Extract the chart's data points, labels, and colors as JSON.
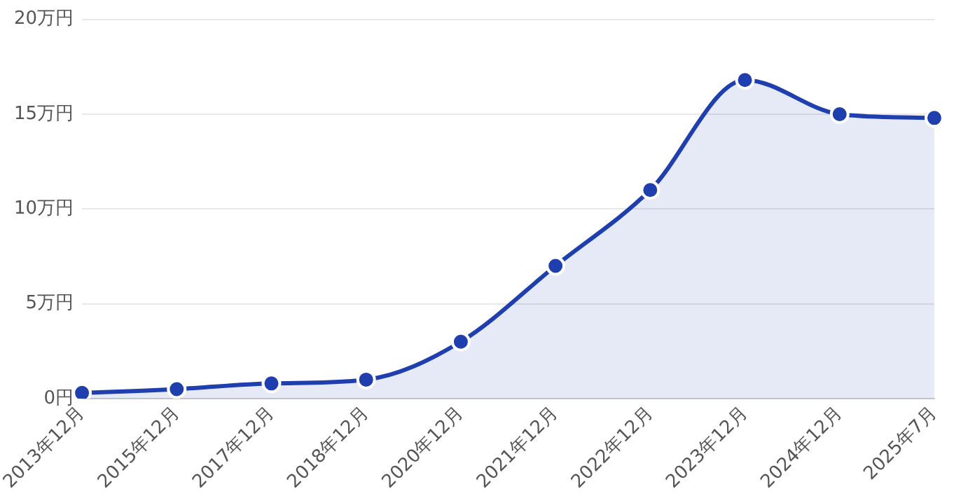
{
  "chart_data": {
    "type": "area",
    "categories": [
      "2013年12月",
      "2015年12月",
      "2017年12月",
      "2018年12月",
      "2020年12月",
      "2021年12月",
      "2022年12月",
      "2023年12月",
      "2024年12月",
      "2025年7月"
    ],
    "series": [
      {
        "color": "#1f3fae",
        "values": [
          0.3,
          0.5,
          0.8,
          1,
          3,
          7,
          11,
          16.8,
          15,
          14.8
        ]
      }
    ],
    "ylim": [
      0,
      20
    ],
    "yticks": [
      {
        "value": 0,
        "label": "0円"
      },
      {
        "value": 5,
        "label": "5万円"
      },
      {
        "value": 10,
        "label": "10万円"
      },
      {
        "value": 15,
        "label": "15万円"
      },
      {
        "value": 20,
        "label": "20万円"
      }
    ],
    "grid": "y",
    "marker": "circle",
    "line_style": "solid"
  }
}
